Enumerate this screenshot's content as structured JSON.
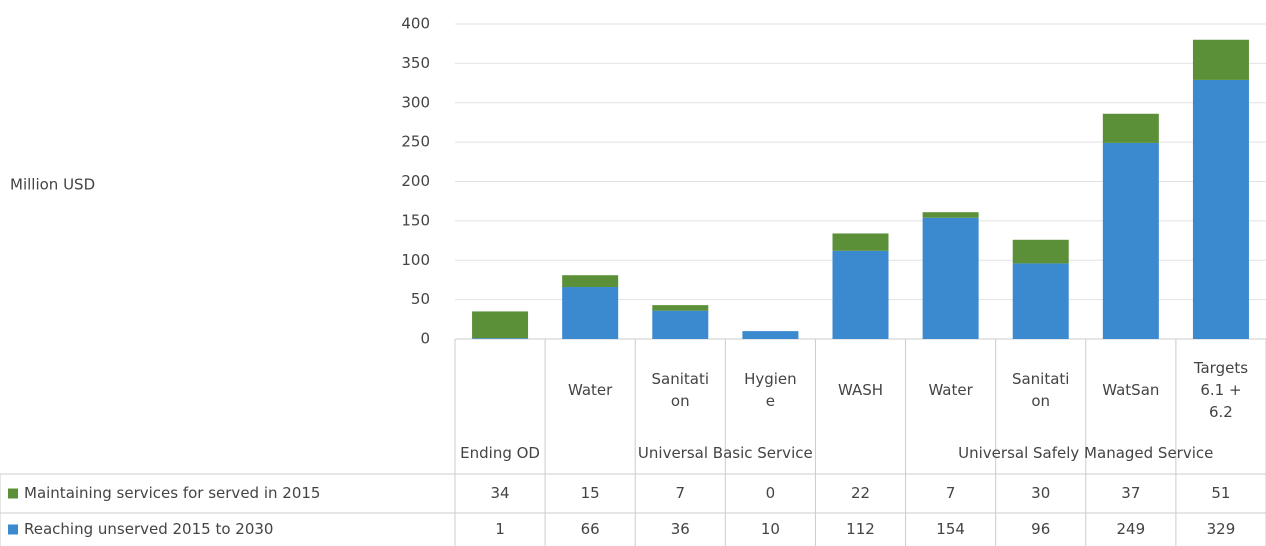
{
  "chart_data": {
    "type": "stacked_bar",
    "y_label": "Million USD",
    "ylim": [
      0,
      400
    ],
    "yticks": [
      0,
      50,
      100,
      150,
      200,
      250,
      300,
      350,
      400
    ],
    "grid": true,
    "groups": [
      {
        "label": "Ending OD",
        "categories": [
          null
        ]
      },
      {
        "label": "Universal Basic Service",
        "categories": [
          "Water",
          "Sanitation",
          "Hygiene",
          "WASH"
        ]
      },
      {
        "label": "Universal Safely Managed Service",
        "categories": [
          "Water",
          "Sanitation",
          "WatSan",
          "Targets 6.1 + 6.2"
        ]
      }
    ],
    "series": [
      {
        "name": "Maintaining services for served in 2015",
        "color": "#5b9038",
        "values": [
          34,
          15,
          7,
          0,
          22,
          7,
          30,
          37,
          51
        ]
      },
      {
        "name": "Reaching unserved 2015 to 2030",
        "color": "#3b8ad0",
        "values": [
          1,
          66,
          36,
          10,
          112,
          154,
          96,
          249,
          329
        ]
      }
    ]
  }
}
